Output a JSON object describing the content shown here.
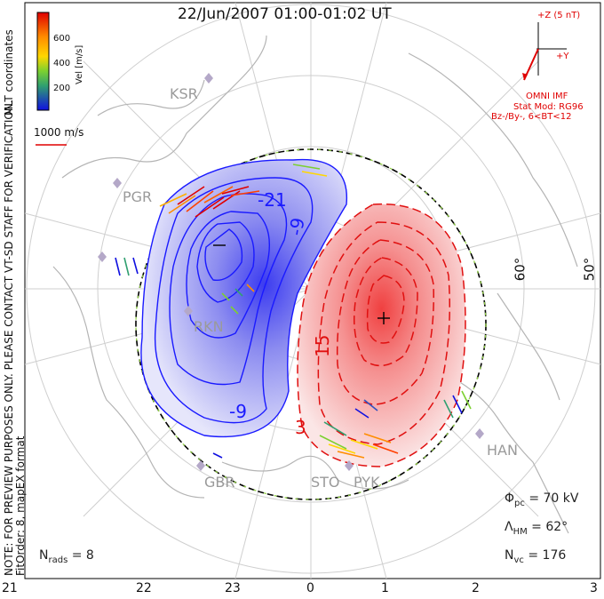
{
  "title": "22/Jun/2007 01:00-01:02 UT",
  "coordinates": "MLT coordinates",
  "note_line1": "NOTE: FOR PREVIEW PURPOSES ONLY. PLEASE CONTACT VT-SD STAFF FOR VERIFICATION.",
  "note_line2": "FitOrder: 8, mapEX format",
  "colorbar": {
    "label": "Vel [m/s]",
    "ticks": [
      "600",
      "400",
      "200"
    ]
  },
  "scale_vector": "1000 m/s",
  "imf": {
    "z_label": "+Z (5 nT)",
    "y_label": "+Y",
    "source": "OMNI IMF",
    "model": "Stat Mod: RG96",
    "condition": "Bz-/By-, 6<BT<12"
  },
  "stations": [
    "KSR",
    "PGR",
    "RKN",
    "HAN",
    "GBR",
    "STO",
    "PYK"
  ],
  "latitude_labels": [
    "60°",
    "50°"
  ],
  "contour_labels": [
    "-21",
    "-9",
    "-9",
    "15",
    "3"
  ],
  "potential_drop": {
    "label": "Φ",
    "sub": "pc",
    "value": " = 70 kV"
  },
  "hm_boundary": {
    "label": "Λ",
    "sub": "HM",
    "value": " = 62°"
  },
  "n_vectors": {
    "label": "N",
    "sub": "vc",
    "value": " = 176"
  },
  "n_radars": {
    "label": "N",
    "sub": "rads",
    "value": " = 8"
  },
  "mlt_ticks": [
    "21",
    "22",
    "23",
    "0",
    "1",
    "2",
    "3"
  ],
  "colors": {
    "negative": "#1a1aff",
    "positive": "#e01010",
    "boundary": "#000000",
    "imf": "#e00000"
  }
}
